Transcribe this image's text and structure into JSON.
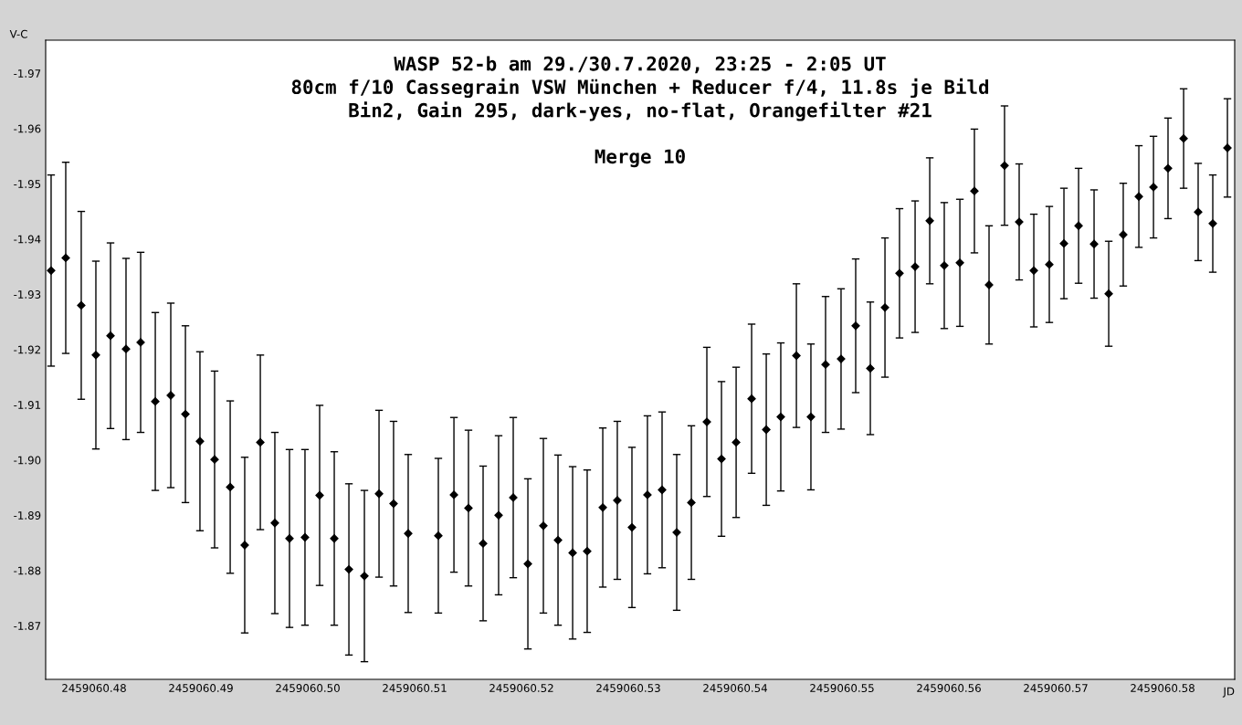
{
  "chart_data": {
    "type": "scatter",
    "title": "WASP 52-b am 29./30.7.2020, 23:25 - 2:05 UT\n80cm f/10 Cassegrain VSW München + Reducer f/4, 11.8s je Bild\nBin2, Gain 295, dark-yes, no-flat, Orangefilter #21",
    "subtitle": "Merge 10",
    "xlabel": "JD",
    "ylabel": "V-C",
    "x": [
      2459060.47598,
      2459060.47735,
      2459060.4788,
      2459060.48017,
      2459060.48154,
      2459060.48299,
      2459060.48436,
      2459060.48573,
      2459060.48718,
      2459060.48855,
      2459060.48991,
      2459060.49128,
      2459060.49274,
      2459060.4941,
      2459060.49556,
      2459060.49692,
      2459060.49829,
      2459060.49974,
      2459060.50111,
      2459060.50248,
      2459060.50385,
      2459060.5053,
      2459060.50667,
      2459060.50803,
      2459060.5094,
      2459060.51222,
      2459060.51368,
      2459060.51504,
      2459060.51641,
      2459060.51786,
      2459060.51923,
      2459060.5206,
      2459060.52205,
      2459060.52342,
      2459060.52479,
      2459060.52615,
      2459060.52761,
      2459060.52897,
      2459060.53034,
      2459060.53179,
      2459060.53316,
      2459060.53453,
      2459060.5359,
      2459060.53735,
      2459060.53872,
      2459060.54009,
      2459060.54154,
      2459060.54291,
      2459060.54427,
      2459060.54573,
      2459060.54709,
      2459060.54846,
      2459060.54991,
      2459060.55128,
      2459060.55265,
      2459060.55402,
      2459060.55538,
      2459060.55684,
      2459060.55821,
      2459060.55957,
      2459060.56103,
      2459060.56239,
      2459060.56376,
      2459060.56521,
      2459060.56658,
      2459060.56795,
      2459060.5694,
      2459060.57077,
      2459060.57214,
      2459060.57359,
      2459060.57496,
      2459060.57632,
      2459060.57778,
      2459060.57915,
      2459060.58051,
      2459060.58197,
      2459060.58333,
      2459060.5847,
      2459060.58607
    ],
    "series": [
      {
        "color": "#000000",
        "values": [
          -1.9343,
          -1.9366,
          -1.928,
          -1.919,
          -1.9225,
          -1.9201,
          -1.9213,
          -1.9106,
          -1.9117,
          -1.9083,
          -1.9034,
          -1.9001,
          -1.8951,
          -1.8846,
          -1.9032,
          -1.8886,
          -1.8858,
          -1.886,
          -1.8936,
          -1.8858,
          -1.8802,
          -1.879,
          -1.8939,
          -1.8921,
          -1.8867,
          -1.8863,
          -1.8937,
          -1.8913,
          -1.8849,
          -1.89,
          -1.8932,
          -1.8812,
          -1.8881,
          -1.8855,
          -1.8832,
          -1.8835,
          -1.8914,
          -1.8927,
          -1.8878,
          -1.8937,
          -1.8946,
          -1.8869,
          -1.8923,
          -1.9069,
          -1.9002,
          -1.9032,
          -1.9111,
          -1.9055,
          -1.9078,
          -1.9189,
          -1.9078,
          -1.9173,
          -1.9183,
          -1.9243,
          -1.9166,
          -1.9276,
          -1.9338,
          -1.935,
          -1.9433,
          -1.9352,
          -1.9357,
          -1.9487,
          -1.9317,
          -1.9533,
          -1.9431,
          -1.9343,
          -1.9354,
          -1.9392,
          -1.9424,
          -1.9391,
          -1.9301,
          -1.9408,
          -1.9477,
          -1.9494,
          -1.9528,
          -1.9582,
          -1.9449,
          -1.9428,
          -1.9565
        ],
        "errors": [
          0.0173,
          0.0173,
          0.017,
          0.017,
          0.0168,
          0.0164,
          0.0163,
          0.0161,
          0.0167,
          0.016,
          0.0162,
          0.016,
          0.0156,
          0.0159,
          0.0158,
          0.0164,
          0.0161,
          0.0159,
          0.0163,
          0.0157,
          0.0155,
          0.0155,
          0.0151,
          0.0149,
          0.0143,
          0.014,
          0.014,
          0.0141,
          0.014,
          0.0144,
          0.0145,
          0.0154,
          0.0158,
          0.0154,
          0.0156,
          0.0147,
          0.0144,
          0.0143,
          0.0145,
          0.0143,
          0.0141,
          0.0141,
          0.0139,
          0.0135,
          0.014,
          0.0136,
          0.0135,
          0.0137,
          0.0134,
          0.013,
          0.0132,
          0.0123,
          0.0127,
          0.0121,
          0.012,
          0.0126,
          0.0117,
          0.0119,
          0.0114,
          0.0114,
          0.0115,
          0.0112,
          0.0107,
          0.0108,
          0.0105,
          0.0102,
          0.0105,
          0.01,
          0.0104,
          0.0098,
          0.0095,
          0.0093,
          0.0092,
          0.0092,
          0.0091,
          0.009,
          0.0088,
          0.0088,
          0.0089
        ]
      }
    ],
    "marker": "diamond",
    "xlim": [
      2459060.47547,
      2459060.58675
    ],
    "xticks": [
      2459060.48,
      2459060.49,
      {
        "value": 2459060.5,
        "label": "2459060.50"
      },
      2459060.51,
      2459060.52,
      2459060.53,
      2459060.54,
      2459060.55,
      2459060.56,
      2459060.57,
      2459060.58
    ],
    "ylim": [
      -1.8603,
      -1.976
    ],
    "yticks": [
      -1.97,
      -1.96,
      -1.95,
      -1.94,
      -1.93,
      -1.92,
      -1.91,
      {
        "value": -1.9,
        "label": "-1.90"
      },
      -1.89,
      -1.88,
      -1.87
    ],
    "grid": false,
    "legend": false
  }
}
